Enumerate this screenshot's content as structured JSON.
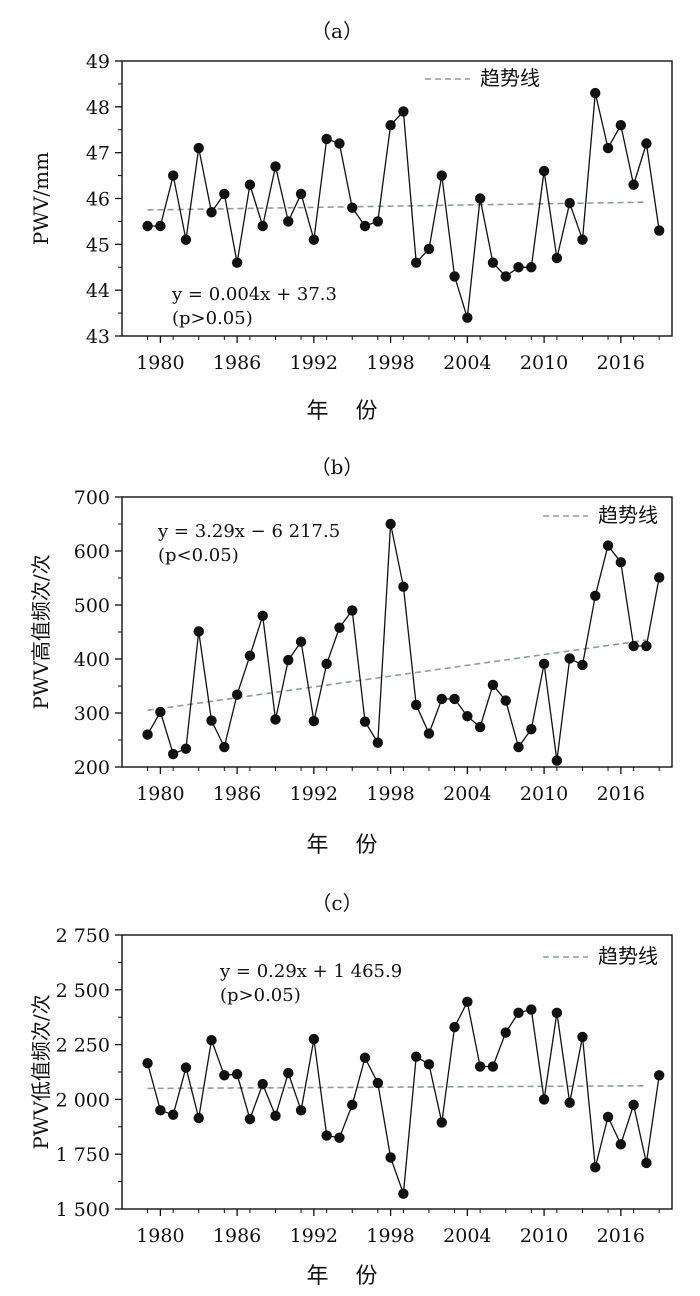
{
  "chart_data": [
    {
      "type": "line",
      "panel_label": "（a）",
      "xlabel": "年 份",
      "ylabel": "PWV/mm",
      "ylim": [
        43,
        49
      ],
      "y_ticks": [
        43,
        44,
        45,
        46,
        47,
        48,
        49
      ],
      "y_tick_labels": [
        "43",
        "44",
        "45",
        "46",
        "47",
        "48",
        "49"
      ],
      "xlim": [
        1977,
        2020
      ],
      "x_ticks": [
        1980,
        1986,
        1992,
        1998,
        2004,
        2010,
        2016
      ],
      "x_tick_labels": [
        "1980",
        "1986",
        "1992",
        "1998",
        "2004",
        "2010",
        "2016"
      ],
      "legend": {
        "label": "趋势线",
        "position": "top-right"
      },
      "annotation": {
        "line1": "y = 0.004x + 37.3",
        "line2": "(p>0.05)",
        "position": "bottom-left"
      },
      "trend": {
        "x": [
          1979,
          2018
        ],
        "y": [
          45.75,
          45.92
        ]
      },
      "series": [
        {
          "x": [
            1979,
            1980,
            1981,
            1982,
            1983,
            1984,
            1985,
            1986,
            1987,
            1988,
            1989,
            1990,
            1991,
            1992,
            1993,
            1994,
            1995,
            1996,
            1997,
            1998,
            1999,
            2000,
            2001,
            2002,
            2003,
            2004,
            2005,
            2006,
            2007,
            2008,
            2009,
            2010,
            2011,
            2012,
            2013,
            2014,
            2015,
            2016,
            2017,
            2018,
            2019
          ],
          "y": [
            45.4,
            45.4,
            46.5,
            45.1,
            47.1,
            45.7,
            46.1,
            44.6,
            46.3,
            45.4,
            46.7,
            45.5,
            46.1,
            45.1,
            47.3,
            47.2,
            45.8,
            45.4,
            45.5,
            47.6,
            47.9,
            44.6,
            44.9,
            46.5,
            44.3,
            43.4,
            46.0,
            44.6,
            44.3,
            44.5,
            44.5,
            46.6,
            44.7,
            45.9,
            45.1,
            48.3,
            47.1,
            47.6,
            46.3,
            47.2,
            45.3
          ]
        }
      ]
    },
    {
      "type": "line",
      "panel_label": "（b）",
      "xlabel": "年 份",
      "ylabel": "PWV高值频次/次",
      "ylim": [
        200,
        700
      ],
      "y_ticks": [
        200,
        300,
        400,
        500,
        600,
        700
      ],
      "y_tick_labels": [
        "200",
        "300",
        "400",
        "500",
        "600",
        "700"
      ],
      "xlim": [
        1977,
        2020
      ],
      "x_ticks": [
        1980,
        1986,
        1992,
        1998,
        2004,
        2010,
        2016
      ],
      "x_tick_labels": [
        "1980",
        "1986",
        "1992",
        "1998",
        "2004",
        "2010",
        "2016"
      ],
      "legend": {
        "label": "趋势线",
        "position": "top-right"
      },
      "annotation": {
        "line1": "y = 3.29x − 6 217.5",
        "line2": "(p<0.05)",
        "position": "top-left"
      },
      "trend": {
        "x": [
          1979,
          2018
        ],
        "y": [
          305,
          435
        ]
      },
      "series": [
        {
          "x": [
            1979,
            1980,
            1981,
            1982,
            1983,
            1984,
            1985,
            1986,
            1987,
            1988,
            1989,
            1990,
            1991,
            1992,
            1993,
            1994,
            1995,
            1996,
            1997,
            1998,
            1999,
            2000,
            2001,
            2002,
            2003,
            2004,
            2005,
            2006,
            2007,
            2008,
            2009,
            2010,
            2011,
            2012,
            2013,
            2014,
            2015,
            2016,
            2017,
            2018,
            2019
          ],
          "y": [
            260,
            302,
            224,
            234,
            451,
            286,
            237,
            334,
            406,
            480,
            288,
            398,
            432,
            285,
            391,
            458,
            490,
            284,
            245,
            650,
            534,
            315,
            262,
            326,
            326,
            294,
            274,
            352,
            323,
            237,
            270,
            391,
            212,
            401,
            389,
            517,
            610,
            579,
            424,
            424,
            551
          ]
        }
      ]
    },
    {
      "type": "line",
      "panel_label": "（c）",
      "xlabel": "年 份",
      "ylabel": "PWV低值频次/次",
      "ylim": [
        1500,
        2750
      ],
      "y_ticks": [
        1500,
        1750,
        2000,
        2250,
        2500,
        2750
      ],
      "y_tick_labels": [
        "1 500",
        "1 750",
        "2 000",
        "2 250",
        "2 500",
        "2 750"
      ],
      "xlim": [
        1977,
        2020
      ],
      "x_ticks": [
        1980,
        1986,
        1992,
        1998,
        2004,
        2010,
        2016
      ],
      "x_tick_labels": [
        "1980",
        "1986",
        "1992",
        "1998",
        "2004",
        "2010",
        "2016"
      ],
      "legend": {
        "label": "趋势线",
        "position": "top-right"
      },
      "annotation": {
        "line1": "y = 0.29x + 1 465.9",
        "line2": "(p>0.05)",
        "position": "top-center"
      },
      "trend": {
        "x": [
          1979,
          2018
        ],
        "y": [
          2050,
          2062
        ]
      },
      "series": [
        {
          "x": [
            1979,
            1980,
            1981,
            1982,
            1983,
            1984,
            1985,
            1986,
            1987,
            1988,
            1989,
            1990,
            1991,
            1992,
            1993,
            1994,
            1995,
            1996,
            1997,
            1998,
            1999,
            2000,
            2001,
            2002,
            2003,
            2004,
            2005,
            2006,
            2007,
            2008,
            2009,
            2010,
            2011,
            2012,
            2013,
            2014,
            2015,
            2016,
            2017,
            2018,
            2019
          ],
          "y": [
            2165,
            1950,
            1930,
            2145,
            1915,
            2270,
            2110,
            2115,
            1910,
            2070,
            1925,
            2120,
            1950,
            2275,
            1835,
            1825,
            1975,
            2190,
            2075,
            1735,
            1570,
            2195,
            2160,
            1895,
            2330,
            2445,
            2150,
            2150,
            2305,
            2395,
            2410,
            2000,
            2395,
            1985,
            2285,
            1690,
            1920,
            1795,
            1975,
            1710,
            2110
          ]
        }
      ]
    }
  ]
}
